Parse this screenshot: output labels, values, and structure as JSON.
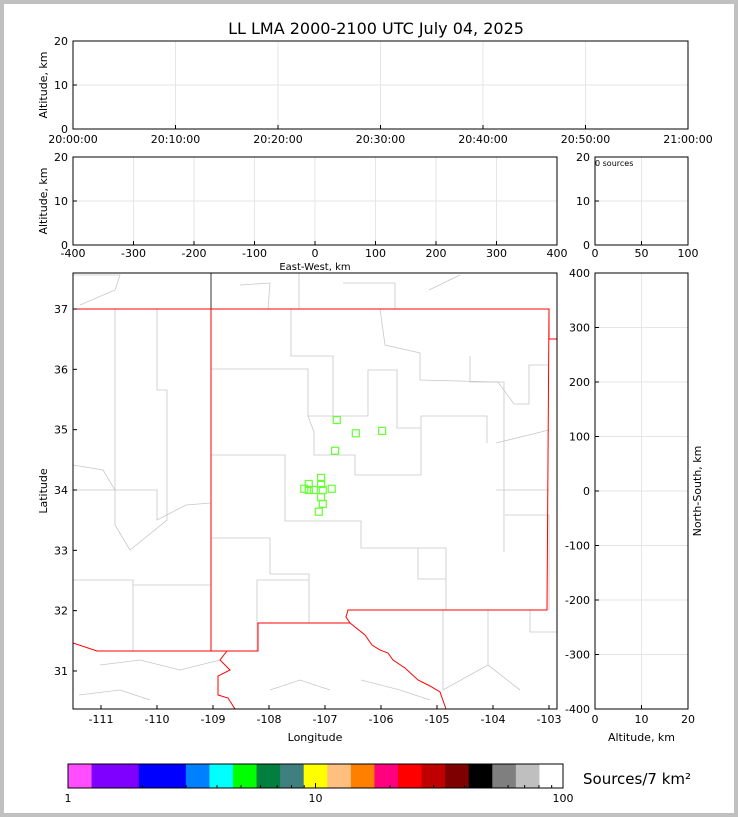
{
  "title": "LL LMA 2000-2100 UTC July 04, 2025",
  "chart_data": [
    {
      "type": "scatter",
      "panel": "time-altitude",
      "ylabel": "Altitude, km",
      "ylim": [
        0,
        20
      ],
      "yticks": [
        "0",
        "10",
        "20"
      ],
      "xticks": [
        "20:00:00",
        "20:10:00",
        "20:20:00",
        "20:30:00",
        "20:40:00",
        "20:50:00",
        "21:00:00"
      ],
      "grid": true,
      "points": []
    },
    {
      "type": "scatter",
      "panel": "eastwest-altitude",
      "xlabel": "East-West, km",
      "ylabel": "Altitude, km",
      "xlim": [
        -400,
        400
      ],
      "ylim": [
        0,
        20
      ],
      "xticks": [
        "-400",
        "-300",
        "-200",
        "-100",
        "0",
        "100",
        "200",
        "300",
        "400"
      ],
      "yticks": [
        "0",
        "10",
        "20"
      ],
      "grid": true,
      "points": []
    },
    {
      "type": "histogram",
      "panel": "altitude-histogram",
      "annotation": "0 sources",
      "xlim": [
        0,
        100
      ],
      "ylim": [
        0,
        20
      ],
      "xticks": [
        "0",
        "50",
        "100"
      ],
      "yticks": [
        "0",
        "10",
        "20"
      ],
      "grid": true
    },
    {
      "type": "scatter",
      "panel": "plan-view-map",
      "xlabel": "Longitude",
      "ylabel": "Latitude",
      "xlim": [
        -111.5,
        -102.85
      ],
      "ylim": [
        30.35,
        37.6
      ],
      "xticks": [
        "-111",
        "-110",
        "-109",
        "-108",
        "-107",
        "-106",
        "-105",
        "-104",
        "-103"
      ],
      "yticks": [
        "31",
        "32",
        "33",
        "34",
        "35",
        "36",
        "37"
      ],
      "marker_color": "#66ff33",
      "border_color": "#ff0000",
      "county_color": "#c8c8c8",
      "points": [
        {
          "lon": -106.79,
          "lat": 35.16
        },
        {
          "lon": -106.45,
          "lat": 34.94
        },
        {
          "lon": -105.98,
          "lat": 34.98
        },
        {
          "lon": -106.82,
          "lat": 34.65
        },
        {
          "lon": -107.07,
          "lat": 34.2
        },
        {
          "lon": -107.07,
          "lat": 34.1
        },
        {
          "lon": -107.29,
          "lat": 34.1
        },
        {
          "lon": -107.37,
          "lat": 34.02
        },
        {
          "lon": -107.29,
          "lat": 34.0
        },
        {
          "lon": -107.2,
          "lat": 34.0
        },
        {
          "lon": -107.04,
          "lat": 34.0
        },
        {
          "lon": -106.88,
          "lat": 34.02
        },
        {
          "lon": -107.07,
          "lat": 33.88
        },
        {
          "lon": -107.04,
          "lat": 33.77
        },
        {
          "lon": -107.11,
          "lat": 33.64
        }
      ]
    },
    {
      "type": "scatter",
      "panel": "altitude-northsouth",
      "xlabel": "Altitude, km",
      "ylabel": "North-South, km",
      "xlim": [
        0,
        20
      ],
      "ylim": [
        -400,
        400
      ],
      "xticks": [
        "0",
        "10",
        "20"
      ],
      "yticks": [
        "-400",
        "-300",
        "-200",
        "-100",
        "0",
        "100",
        "200",
        "300",
        "400"
      ],
      "grid": true,
      "points": []
    }
  ],
  "colorbar": {
    "label": "Sources/7 km²",
    "scale": "log",
    "range": [
      1,
      100
    ],
    "tick_labels": [
      "1",
      "10",
      "100"
    ],
    "colors": [
      "#ff4dff",
      "#7f00ff",
      "#7f00ff",
      "#0000ff",
      "#0000ff",
      "#007fff",
      "#00ffff",
      "#00ff00",
      "#007f3f",
      "#3f7f7f",
      "#ffff00",
      "#ffbf7f",
      "#ff7f00",
      "#ff007f",
      "#ff0000",
      "#bf0000",
      "#7f0000",
      "#000000",
      "#7f7f7f",
      "#bfbfbf",
      "#ffffff"
    ]
  }
}
